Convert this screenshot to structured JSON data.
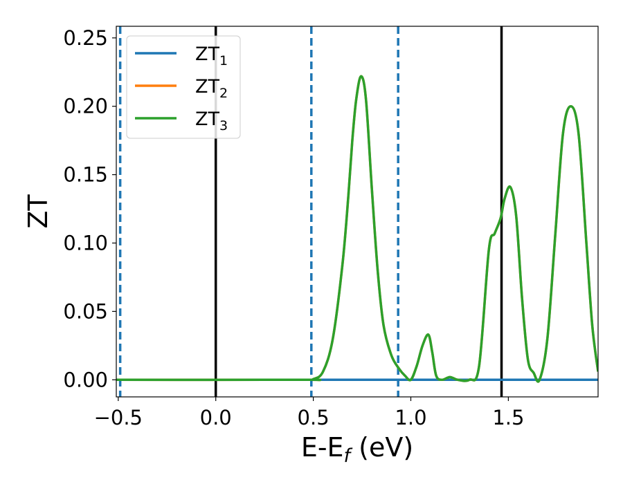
{
  "chart_data": {
    "type": "line",
    "xlabel": "E-E",
    "xlabel_sub": "f",
    "xlabel_unit": " (eV)",
    "ylabel": "ZT",
    "xlim": [
      -0.51,
      1.96
    ],
    "ylim": [
      -0.0125,
      0.2585
    ],
    "x_ticks": [
      -0.5,
      0.0,
      0.5,
      1.0,
      1.5
    ],
    "x_tick_labels": [
      "−0.5",
      "0.0",
      "0.5",
      "1.0",
      "1.5"
    ],
    "y_ticks": [
      0.0,
      0.05,
      0.1,
      0.15,
      0.2,
      0.25
    ],
    "y_tick_labels": [
      "0.00",
      "0.05",
      "0.10",
      "0.15",
      "0.20",
      "0.25"
    ],
    "grid": false,
    "legend_position": "top-left",
    "legend": [
      {
        "base": "ZT",
        "sub": "1",
        "color": "#1f77b4"
      },
      {
        "base": "ZT",
        "sub": "2",
        "color": "#ff7f0e"
      },
      {
        "base": "ZT",
        "sub": "3",
        "color": "#2ca02c"
      }
    ],
    "vlines_solid": [
      0.0,
      1.465
    ],
    "vlines_dashed": [
      -0.49,
      0.49,
      0.935
    ],
    "series": [
      {
        "name": "ZT1",
        "color": "#1f77b4",
        "x": [
          -0.51,
          0.45,
          0.5,
          1.0,
          1.5,
          1.96
        ],
        "y": [
          0.0,
          0.0,
          0.0,
          0.0,
          0.0,
          0.0
        ]
      },
      {
        "name": "ZT2",
        "color": "#ff7f0e",
        "x": [
          -0.51,
          0.45,
          0.5,
          0.55,
          0.6,
          0.65,
          0.68,
          0.7,
          0.72,
          0.745,
          0.77,
          0.8,
          0.83,
          0.86,
          0.9,
          0.94,
          0.97,
          1.0,
          1.03,
          1.06,
          1.09,
          1.11,
          1.13,
          1.16,
          1.2,
          1.24,
          1.3,
          1.35,
          1.4,
          1.43,
          1.46,
          1.48,
          1.51,
          1.54,
          1.57,
          1.6,
          1.63,
          1.66,
          1.7,
          1.74,
          1.78,
          1.82,
          1.86,
          1.9,
          1.93,
          1.96
        ],
        "y": [
          0.0,
          0.0,
          0.0005,
          0.006,
          0.03,
          0.085,
          0.135,
          0.175,
          0.205,
          0.222,
          0.205,
          0.14,
          0.08,
          0.04,
          0.018,
          0.008,
          0.003,
          0.0,
          0.01,
          0.025,
          0.033,
          0.02,
          0.003,
          0.0,
          0.002,
          0.0,
          0.0,
          0.01,
          0.095,
          0.107,
          0.118,
          0.132,
          0.141,
          0.12,
          0.06,
          0.015,
          0.005,
          0.0,
          0.03,
          0.105,
          0.18,
          0.2,
          0.18,
          0.1,
          0.04,
          0.006
        ]
      },
      {
        "name": "ZT3",
        "color": "#2ca02c",
        "x": [
          -0.51,
          0.45,
          0.5,
          0.55,
          0.6,
          0.65,
          0.68,
          0.7,
          0.72,
          0.745,
          0.77,
          0.8,
          0.83,
          0.86,
          0.9,
          0.94,
          0.97,
          1.0,
          1.03,
          1.06,
          1.09,
          1.11,
          1.13,
          1.16,
          1.2,
          1.24,
          1.3,
          1.35,
          1.4,
          1.43,
          1.46,
          1.48,
          1.51,
          1.54,
          1.57,
          1.6,
          1.63,
          1.66,
          1.7,
          1.74,
          1.78,
          1.82,
          1.86,
          1.9,
          1.93,
          1.96
        ],
        "y": [
          0.0,
          0.0,
          0.0005,
          0.006,
          0.03,
          0.085,
          0.135,
          0.175,
          0.205,
          0.222,
          0.205,
          0.14,
          0.08,
          0.04,
          0.018,
          0.008,
          0.003,
          0.0,
          0.01,
          0.025,
          0.033,
          0.02,
          0.003,
          0.0,
          0.002,
          0.0,
          0.0,
          0.01,
          0.095,
          0.107,
          0.118,
          0.132,
          0.141,
          0.12,
          0.06,
          0.015,
          0.005,
          0.0,
          0.03,
          0.105,
          0.18,
          0.2,
          0.18,
          0.1,
          0.04,
          0.006
        ]
      }
    ]
  }
}
